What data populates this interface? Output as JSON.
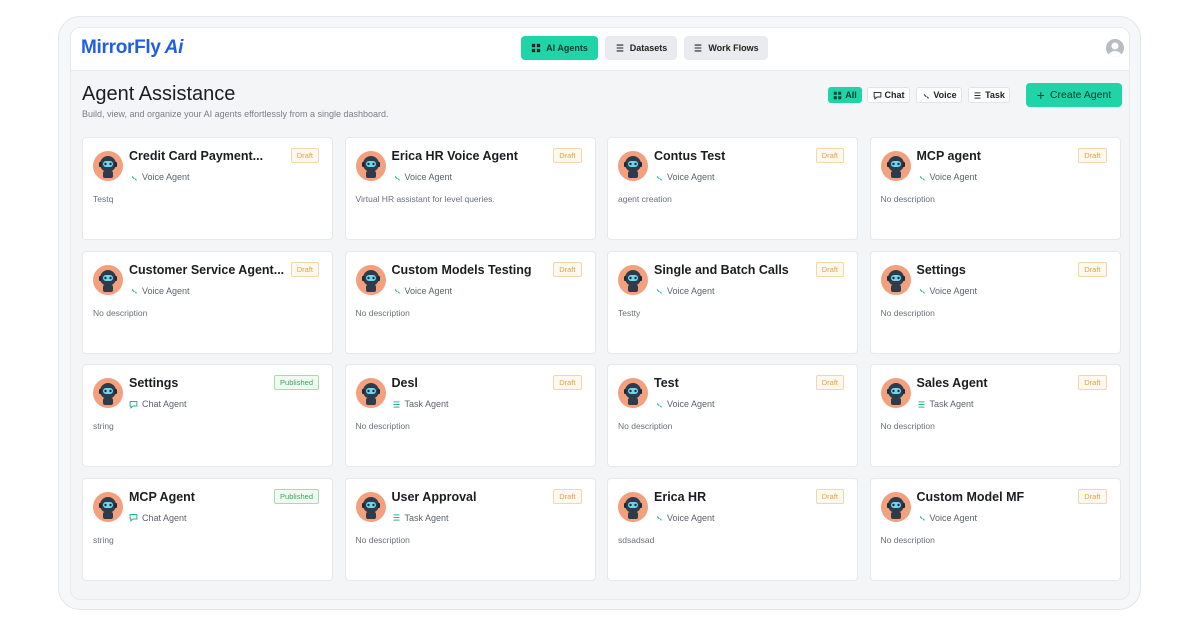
{
  "header": {
    "logo": "MirrorFly",
    "logo_suffix": "Ai",
    "nav": [
      "AI Agents",
      "Datasets",
      "Work Flows"
    ],
    "active_nav": 0
  },
  "page": {
    "title": "Agent Assistance",
    "subtitle": "Build, view, and organize your AI agents effortlessly from a single dashboard.",
    "filters": [
      "All",
      "Chat",
      "Voice",
      "Task"
    ],
    "active_filter": 0,
    "create_button": "Create Agent"
  },
  "agents": [
    {
      "name": "Credit Card Payment...",
      "status": "Draft",
      "status_color": "#e2a33f",
      "type": "Voice Agent",
      "description": "Testq"
    },
    {
      "name": "Erica HR Voice Agent",
      "status": "Draft",
      "status_color": "#e2a33f",
      "type": "Voice Agent",
      "description": "Virtual HR assistant for level queries."
    },
    {
      "name": "Contus Test",
      "status": "Draft",
      "status_color": "#e2a33f",
      "type": "Voice Agent",
      "description": "agent creation"
    },
    {
      "name": "MCP agent",
      "status": "Draft",
      "status_color": "#e2a33f",
      "type": "Voice Agent",
      "description": "No description"
    },
    {
      "name": "Customer Service Agent...",
      "status": "Draft",
      "status_color": "#e2a33f",
      "type": "Voice Agent",
      "description": "No description"
    },
    {
      "name": "Custom Models Testing",
      "status": "Draft",
      "status_color": "#e2a33f",
      "type": "Voice Agent",
      "description": "No description"
    },
    {
      "name": "Single and Batch Calls",
      "status": "Draft",
      "status_color": "#e2a33f",
      "type": "Voice Agent",
      "description": "Testty"
    },
    {
      "name": "Settings",
      "status": "Draft",
      "status_color": "#e2a33f",
      "type": "Voice Agent",
      "description": "No description"
    },
    {
      "name": "Settings",
      "status": "Published",
      "status_color": "#3aa757",
      "type": "Chat Agent",
      "description": "string"
    },
    {
      "name": "Desl",
      "status": "Draft",
      "status_color": "#e2a33f",
      "type": "Task Agent",
      "description": "No description"
    },
    {
      "name": "Test",
      "status": "Draft",
      "status_color": "#e2a33f",
      "type": "Voice Agent",
      "description": "No description"
    },
    {
      "name": "Sales Agent",
      "status": "Draft",
      "status_color": "#e2a33f",
      "type": "Task Agent",
      "description": "No description"
    },
    {
      "name": "MCP Agent",
      "status": "Published",
      "status_color": "#3aa757",
      "type": "Chat Agent",
      "description": "string"
    },
    {
      "name": "User Approval",
      "status": "Draft",
      "status_color": "#e2a33f",
      "type": "Task Agent",
      "description": "No description"
    },
    {
      "name": "Erica HR",
      "status": "Draft",
      "status_color": "#e2a33f",
      "type": "Voice Agent",
      "description": "sdsadsad"
    },
    {
      "name": "Custom Model MF",
      "status": "Draft",
      "status_color": "#e2a33f",
      "type": "Voice Agent",
      "description": "No description"
    }
  ]
}
